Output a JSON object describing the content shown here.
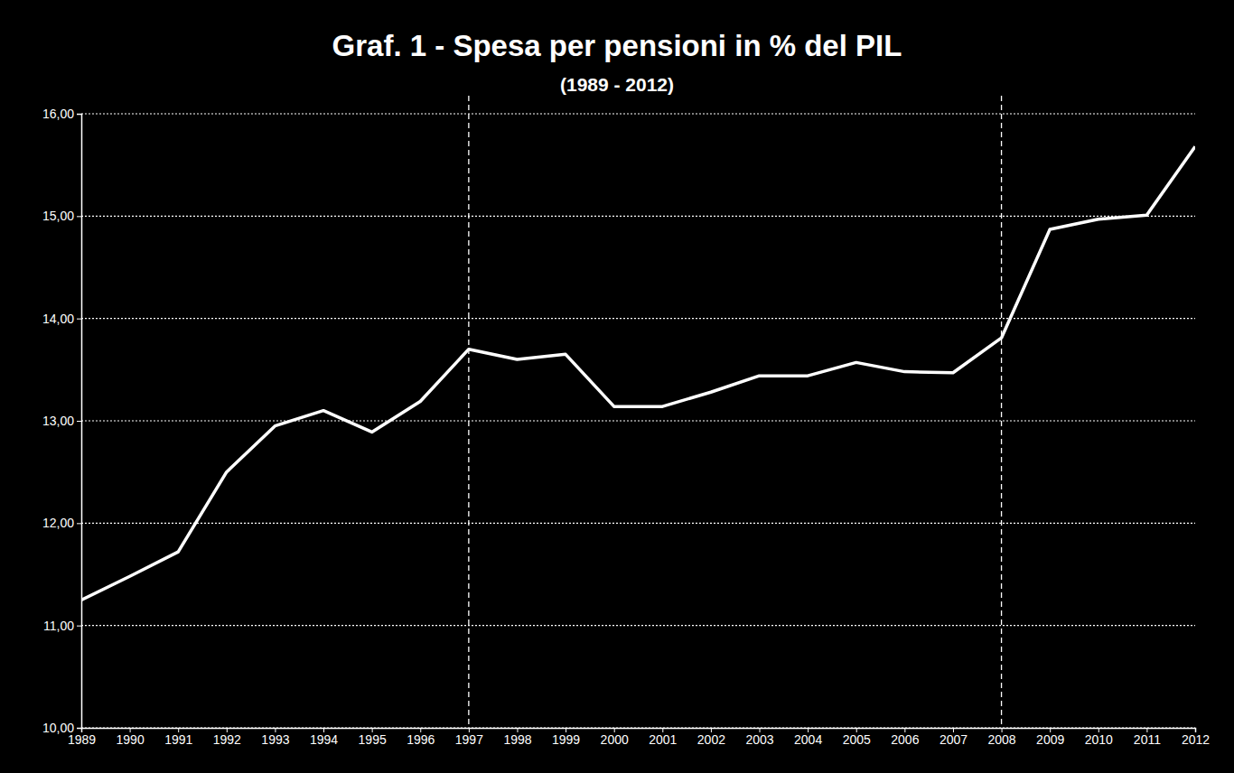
{
  "chart_data": {
    "type": "line",
    "title": "Graf. 1 - Spesa per pensioni in % del PIL",
    "subtitle": "(1989 - 2012)",
    "categories": [
      "1989",
      "1990",
      "1991",
      "1992",
      "1993",
      "1994",
      "1995",
      "1996",
      "1997",
      "1998",
      "1999",
      "2000",
      "2001",
      "2002",
      "2003",
      "2004",
      "2005",
      "2006",
      "2007",
      "2008",
      "2009",
      "2010",
      "2011",
      "2012"
    ],
    "values": [
      11.25,
      11.48,
      11.72,
      12.5,
      12.95,
      13.1,
      12.89,
      13.19,
      13.7,
      13.6,
      13.65,
      13.14,
      13.14,
      13.28,
      13.44,
      13.44,
      13.57,
      13.48,
      13.47,
      13.81,
      14.87,
      14.97,
      15.01,
      15.68
    ],
    "color": "#ffffff",
    "ylim": [
      10,
      16
    ],
    "yticks": [
      {
        "value": 10,
        "label": "10,00"
      },
      {
        "value": 11,
        "label": "11,00"
      },
      {
        "value": 12,
        "label": "12,00"
      },
      {
        "value": 13,
        "label": "13,00"
      },
      {
        "value": 14,
        "label": "14,00"
      },
      {
        "value": 15,
        "label": "15,00"
      },
      {
        "value": 16,
        "label": "16,00"
      }
    ],
    "grid": true,
    "vlines": [
      "1997",
      "2008"
    ]
  }
}
